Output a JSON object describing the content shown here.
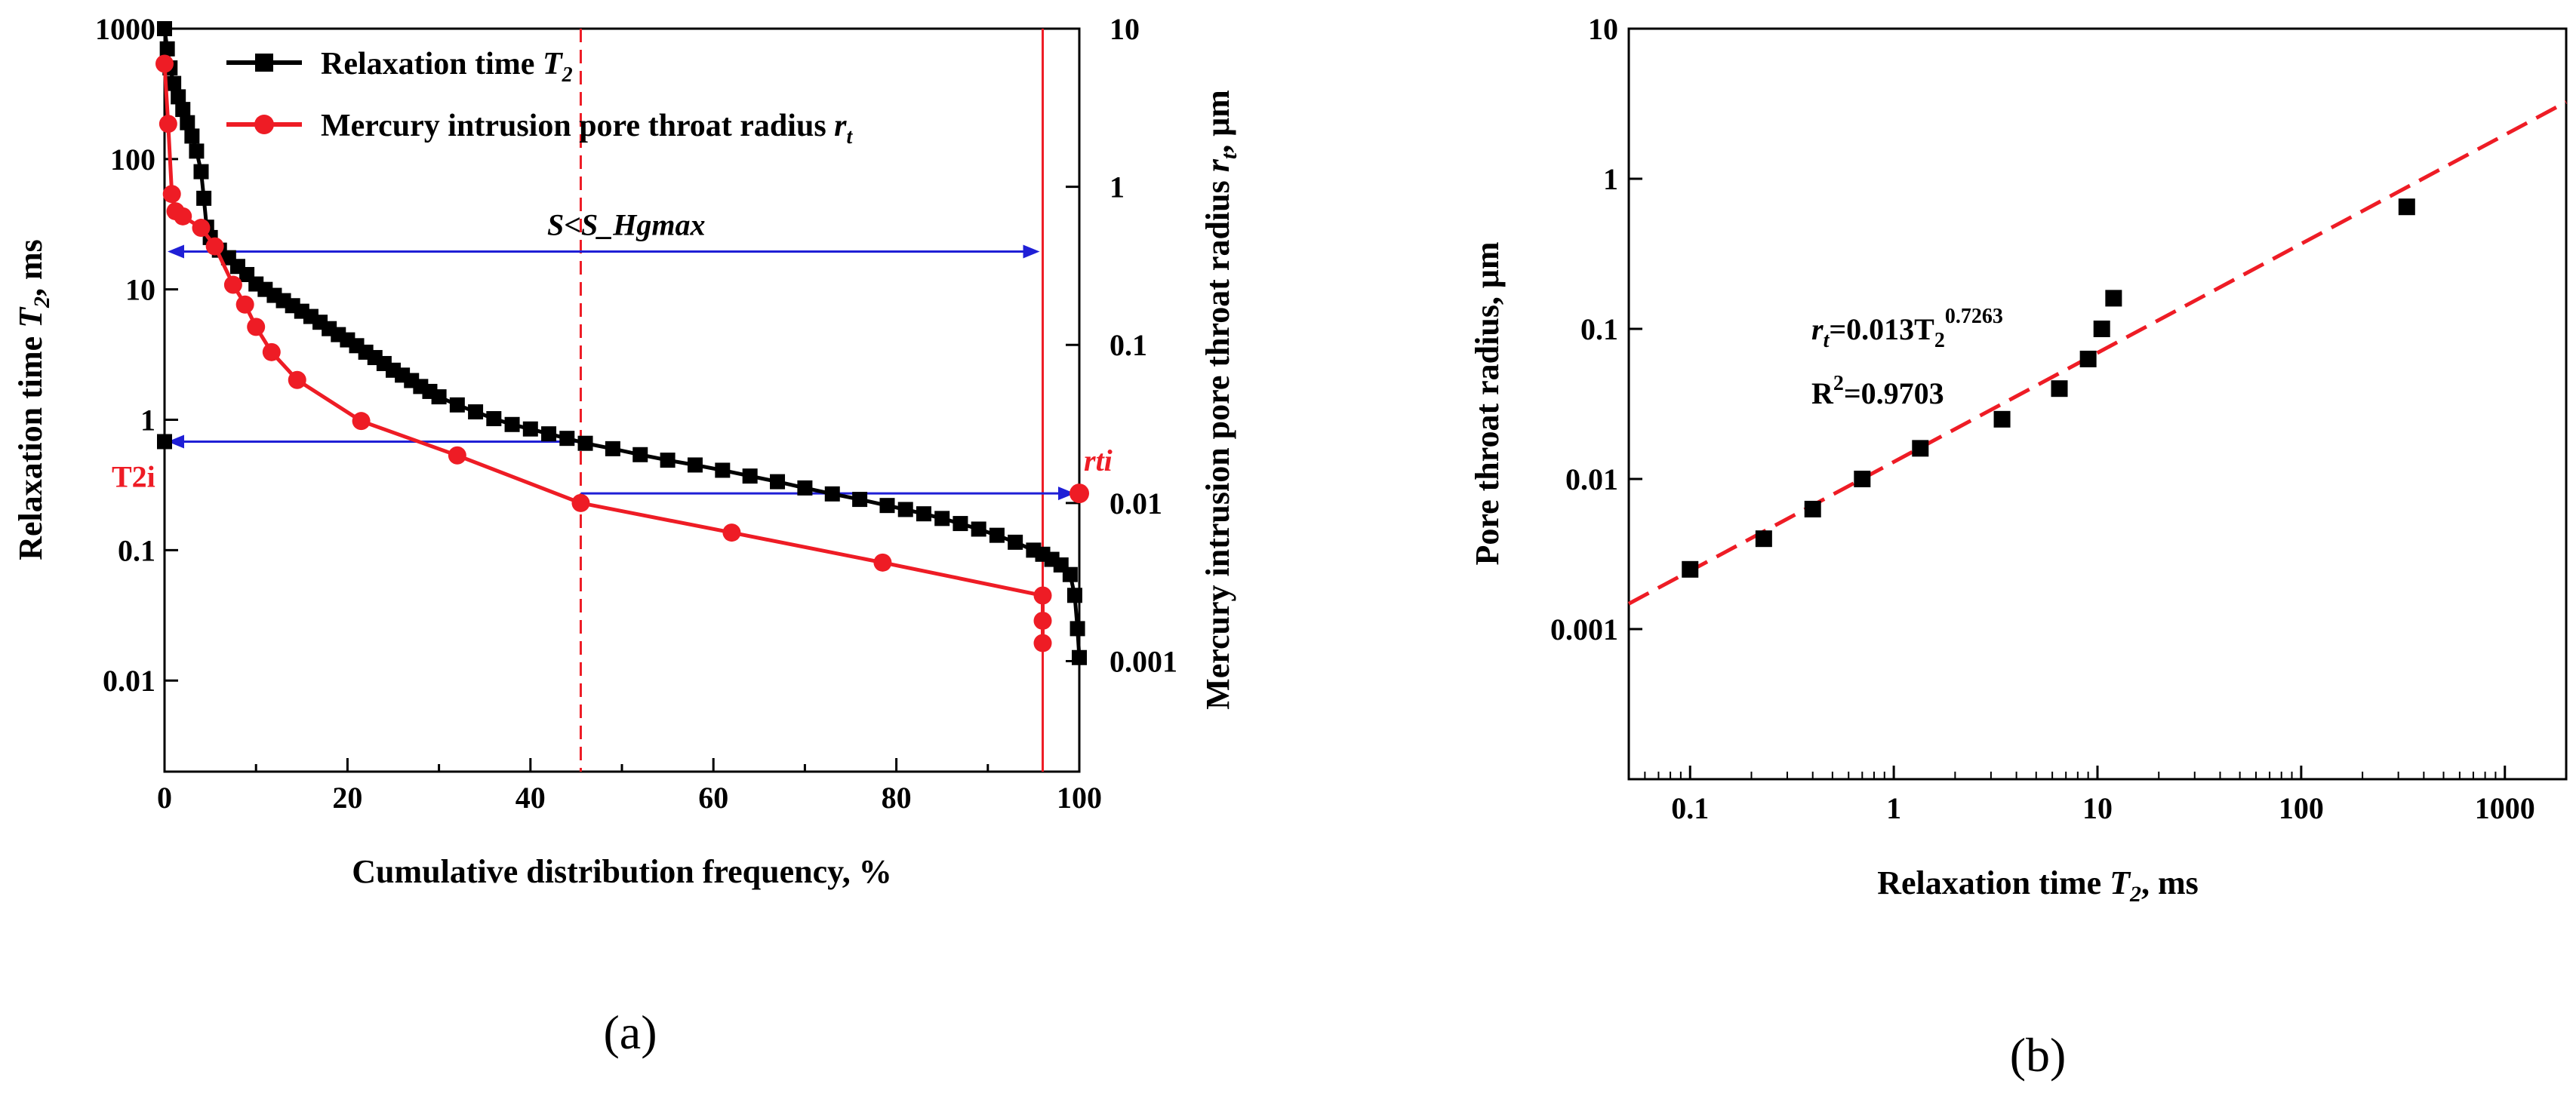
{
  "chart_data": [
    {
      "id": "a",
      "type": "line",
      "panel_label": "(a)",
      "xlabel": "Cumulative distribution frequency, %",
      "ylabel_left": "Relaxation time T₂, ms",
      "ylabel_right": "Mercury intrusion pore throat radius r_t, μm",
      "xlim": [
        0,
        100
      ],
      "ylim_left": [
        0.002,
        1000
      ],
      "ylim_right": [
        0.0002,
        10
      ],
      "x_ticks": [
        "0",
        "20",
        "40",
        "60",
        "80",
        "100"
      ],
      "y_left_ticks": [
        "0.01",
        "0.1",
        "1",
        "10",
        "100",
        "1000"
      ],
      "y_right_ticks": [
        "0.001",
        "0.01",
        "0.1",
        "1",
        "10"
      ],
      "legend": [
        "Relaxation time T₂",
        "Mercury intrusion pore throat radius r_t"
      ],
      "series": [
        {
          "name": "Relaxation time T2",
          "axis": "left",
          "color": "#000000",
          "marker": "square",
          "points": [
            [
              0,
              1000
            ],
            [
              0.3,
              700
            ],
            [
              0.6,
              500
            ],
            [
              1.0,
              380
            ],
            [
              1.5,
              300
            ],
            [
              2.0,
              240
            ],
            [
              2.5,
              190
            ],
            [
              3.0,
              150
            ],
            [
              3.5,
              115
            ],
            [
              4.0,
              80
            ],
            [
              4.3,
              50
            ],
            [
              4.6,
              30
            ],
            [
              5.0,
              25
            ],
            [
              6,
              20
            ],
            [
              7,
              17.5
            ],
            [
              8,
              15
            ],
            [
              9,
              13
            ],
            [
              10,
              11
            ],
            [
              11,
              10
            ],
            [
              12,
              9
            ],
            [
              13,
              8.2
            ],
            [
              14,
              7.5
            ],
            [
              15,
              6.8
            ],
            [
              16,
              6.2
            ],
            [
              17,
              5.6
            ],
            [
              18,
              5
            ],
            [
              19,
              4.5
            ],
            [
              20,
              4.1
            ],
            [
              21,
              3.7
            ],
            [
              22,
              3.3
            ],
            [
              23,
              3
            ],
            [
              24,
              2.7
            ],
            [
              25,
              2.4
            ],
            [
              26,
              2.2
            ],
            [
              27,
              2
            ],
            [
              28,
              1.8
            ],
            [
              29,
              1.65
            ],
            [
              30,
              1.5
            ],
            [
              32,
              1.3
            ],
            [
              34,
              1.15
            ],
            [
              36,
              1.02
            ],
            [
              38,
              0.92
            ],
            [
              40,
              0.85
            ],
            [
              42,
              0.78
            ],
            [
              44,
              0.72
            ],
            [
              46,
              0.66
            ],
            [
              49,
              0.6
            ],
            [
              52,
              0.54
            ],
            [
              55,
              0.49
            ],
            [
              58,
              0.45
            ],
            [
              61,
              0.41
            ],
            [
              64,
              0.37
            ],
            [
              67,
              0.335
            ],
            [
              70,
              0.3
            ],
            [
              73,
              0.27
            ],
            [
              76,
              0.245
            ],
            [
              79,
              0.22
            ],
            [
              81,
              0.205
            ],
            [
              83,
              0.19
            ],
            [
              85,
              0.175
            ],
            [
              87,
              0.16
            ],
            [
              89,
              0.145
            ],
            [
              91,
              0.13
            ],
            [
              93,
              0.115
            ],
            [
              95,
              0.1
            ],
            [
              96,
              0.093
            ],
            [
              97,
              0.085
            ],
            [
              98,
              0.077
            ],
            [
              99,
              0.065
            ],
            [
              99.5,
              0.045
            ],
            [
              99.8,
              0.025
            ],
            [
              100,
              0.015
            ]
          ]
        },
        {
          "name": "Mercury intrusion pore throat radius rt",
          "axis": "right",
          "color": "#ee1c25",
          "marker": "circle",
          "points": [
            [
              0,
              6
            ],
            [
              0.4,
              2.5
            ],
            [
              0.8,
              0.9
            ],
            [
              1.2,
              0.7
            ],
            [
              2,
              0.65
            ],
            [
              4,
              0.55
            ],
            [
              5.5,
              0.42
            ],
            [
              7.5,
              0.24
            ],
            [
              8.8,
              0.18
            ],
            [
              10,
              0.13
            ],
            [
              11.7,
              0.09
            ],
            [
              14.5,
              0.06
            ],
            [
              21.5,
              0.033
            ],
            [
              32,
              0.02
            ],
            [
              45.5,
              0.01
            ],
            [
              62,
              0.0065
            ],
            [
              78.5,
              0.0042
            ],
            [
              96,
              0.0026
            ],
            [
              96,
              0.0018
            ],
            [
              96,
              0.0013
            ]
          ]
        }
      ],
      "annotations": {
        "range_label": "S<S_Hgmax",
        "t2i_label": "T2i",
        "rti_label": "rti",
        "t2i_value": 0.68,
        "rti_value": 0.0115,
        "vline_dashed_x": 45.5,
        "vline_solid_x": 96,
        "blue_line_value": 19.5
      }
    },
    {
      "id": "b",
      "type": "scatter",
      "panel_label": "(b)",
      "xlabel": "Relaxation time T₂, ms",
      "ylabel": "Pore throat radius, μm",
      "xlim": [
        0.05,
        2000
      ],
      "ylim": [
        0.0001,
        10
      ],
      "x_ticks": [
        "0.1",
        "1",
        "10",
        "100",
        "1000"
      ],
      "y_ticks": [
        "0.001",
        "0.01",
        "0.1",
        "1",
        "10"
      ],
      "points": [
        [
          0.1,
          0.0025
        ],
        [
          0.23,
          0.004
        ],
        [
          0.4,
          0.0063
        ],
        [
          0.7,
          0.01
        ],
        [
          1.35,
          0.016
        ],
        [
          3.4,
          0.025
        ],
        [
          6.5,
          0.04
        ],
        [
          9,
          0.063
        ],
        [
          10.5,
          0.1
        ],
        [
          12,
          0.16
        ],
        [
          330,
          0.65
        ]
      ],
      "fit": {
        "a": 0.013,
        "b": 0.7263,
        "color": "#ee1c25",
        "style": "dashed"
      },
      "equation": {
        "lhs": "r",
        "lhs_sub": "t",
        "mid": "=0.013T",
        "t_sub": "2",
        "exponent": "0.7263"
      },
      "r2": {
        "prefix": "R",
        "sup": "2",
        "suffix": "=0.9703"
      }
    }
  ]
}
